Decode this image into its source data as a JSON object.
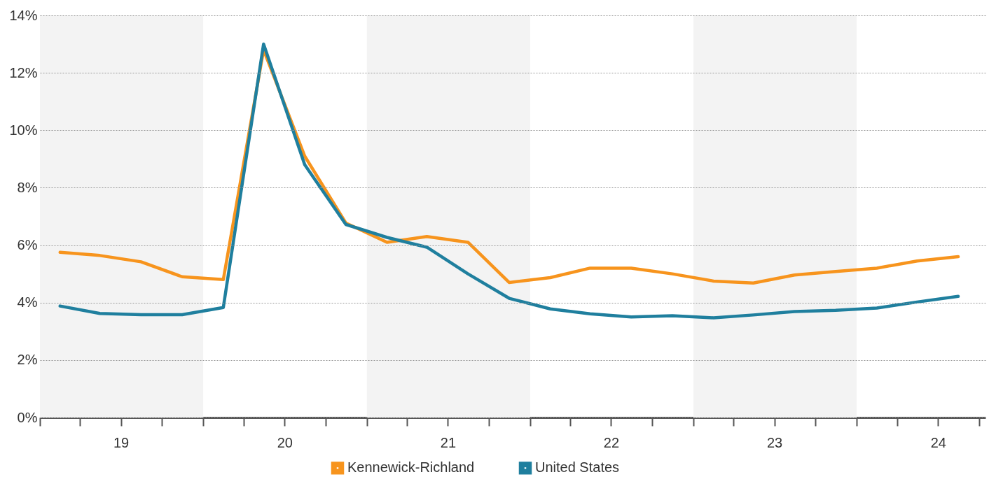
{
  "chart_data": {
    "type": "line",
    "x": [
      "2019-02-15",
      "2019-05-15",
      "2019-08-15",
      "2019-11-15",
      "2020-02-15",
      "2020-05-15",
      "2020-08-15",
      "2020-11-15",
      "2021-02-15",
      "2021-05-15",
      "2021-08-15",
      "2021-11-15",
      "2022-02-15",
      "2022-05-15",
      "2022-08-15",
      "2022-11-15",
      "2023-02-15",
      "2023-05-15",
      "2023-08-15",
      "2023-11-15",
      "2024-02-15",
      "2024-05-15",
      "2024-08-15"
    ],
    "series": [
      {
        "name": "Kennewick-Richland",
        "color": "#f7941d",
        "values": [
          5.75,
          5.64,
          5.42,
          4.9,
          4.8,
          12.8,
          9.1,
          6.77,
          6.1,
          6.3,
          6.1,
          4.7,
          4.87,
          5.2,
          5.2,
          5.0,
          4.75,
          4.68,
          4.96,
          5.08,
          5.2,
          5.45,
          5.6
        ]
      },
      {
        "name": "United States",
        "color": "#1f7f9e",
        "values": [
          3.88,
          3.62,
          3.58,
          3.58,
          3.83,
          13.0,
          8.8,
          6.72,
          6.27,
          5.93,
          5.0,
          4.15,
          3.78,
          3.61,
          3.5,
          3.54,
          3.47,
          3.57,
          3.69,
          3.73,
          3.81,
          4.02,
          4.22
        ]
      }
    ],
    "xlim": [
      "2019-01-01",
      "2024-10-15"
    ],
    "xticks": [
      {
        "value": "2019-01-01",
        "label": null
      },
      {
        "value": "2019-04-01",
        "label": null
      },
      {
        "value": "2019-07-01",
        "label": "19"
      },
      {
        "value": "2019-10-01",
        "label": null
      },
      {
        "value": "2020-01-01",
        "label": null
      },
      {
        "value": "2020-04-01",
        "label": null
      },
      {
        "value": "2020-07-01",
        "label": "20"
      },
      {
        "value": "2020-10-01",
        "label": null
      },
      {
        "value": "2021-01-01",
        "label": null
      },
      {
        "value": "2021-04-01",
        "label": null
      },
      {
        "value": "2021-07-01",
        "label": "21"
      },
      {
        "value": "2021-10-01",
        "label": null
      },
      {
        "value": "2022-01-01",
        "label": null
      },
      {
        "value": "2022-04-01",
        "label": null
      },
      {
        "value": "2022-07-01",
        "label": "22"
      },
      {
        "value": "2022-10-01",
        "label": null
      },
      {
        "value": "2023-01-01",
        "label": null
      },
      {
        "value": "2023-04-01",
        "label": null
      },
      {
        "value": "2023-07-01",
        "label": "23"
      },
      {
        "value": "2023-10-01",
        "label": null
      },
      {
        "value": "2024-01-01",
        "label": null
      },
      {
        "value": "2024-04-01",
        "label": null
      },
      {
        "value": "2024-07-01",
        "label": "24"
      },
      {
        "value": "2024-10-01",
        "label": null
      }
    ],
    "ylim": [
      0,
      14
    ],
    "yticks": [
      {
        "value": 0,
        "label": "0%"
      },
      {
        "value": 2,
        "label": "2%"
      },
      {
        "value": 4,
        "label": "4%"
      },
      {
        "value": 6,
        "label": "6%"
      },
      {
        "value": 8,
        "label": "8%"
      },
      {
        "value": 10,
        "label": "10%"
      },
      {
        "value": 12,
        "label": "12%"
      },
      {
        "value": 14,
        "label": "14%"
      }
    ],
    "bands": [
      {
        "axis": "x",
        "from": "2019-01-01",
        "to": "2020-01-01",
        "color": "#f3f3f3"
      },
      {
        "axis": "x",
        "from": "2021-01-01",
        "to": "2022-01-01",
        "color": "#f3f3f3"
      },
      {
        "axis": "x",
        "from": "2023-01-01",
        "to": "2024-01-01",
        "color": "#f3f3f3"
      }
    ],
    "grid": "y",
    "legend": "bottom"
  }
}
